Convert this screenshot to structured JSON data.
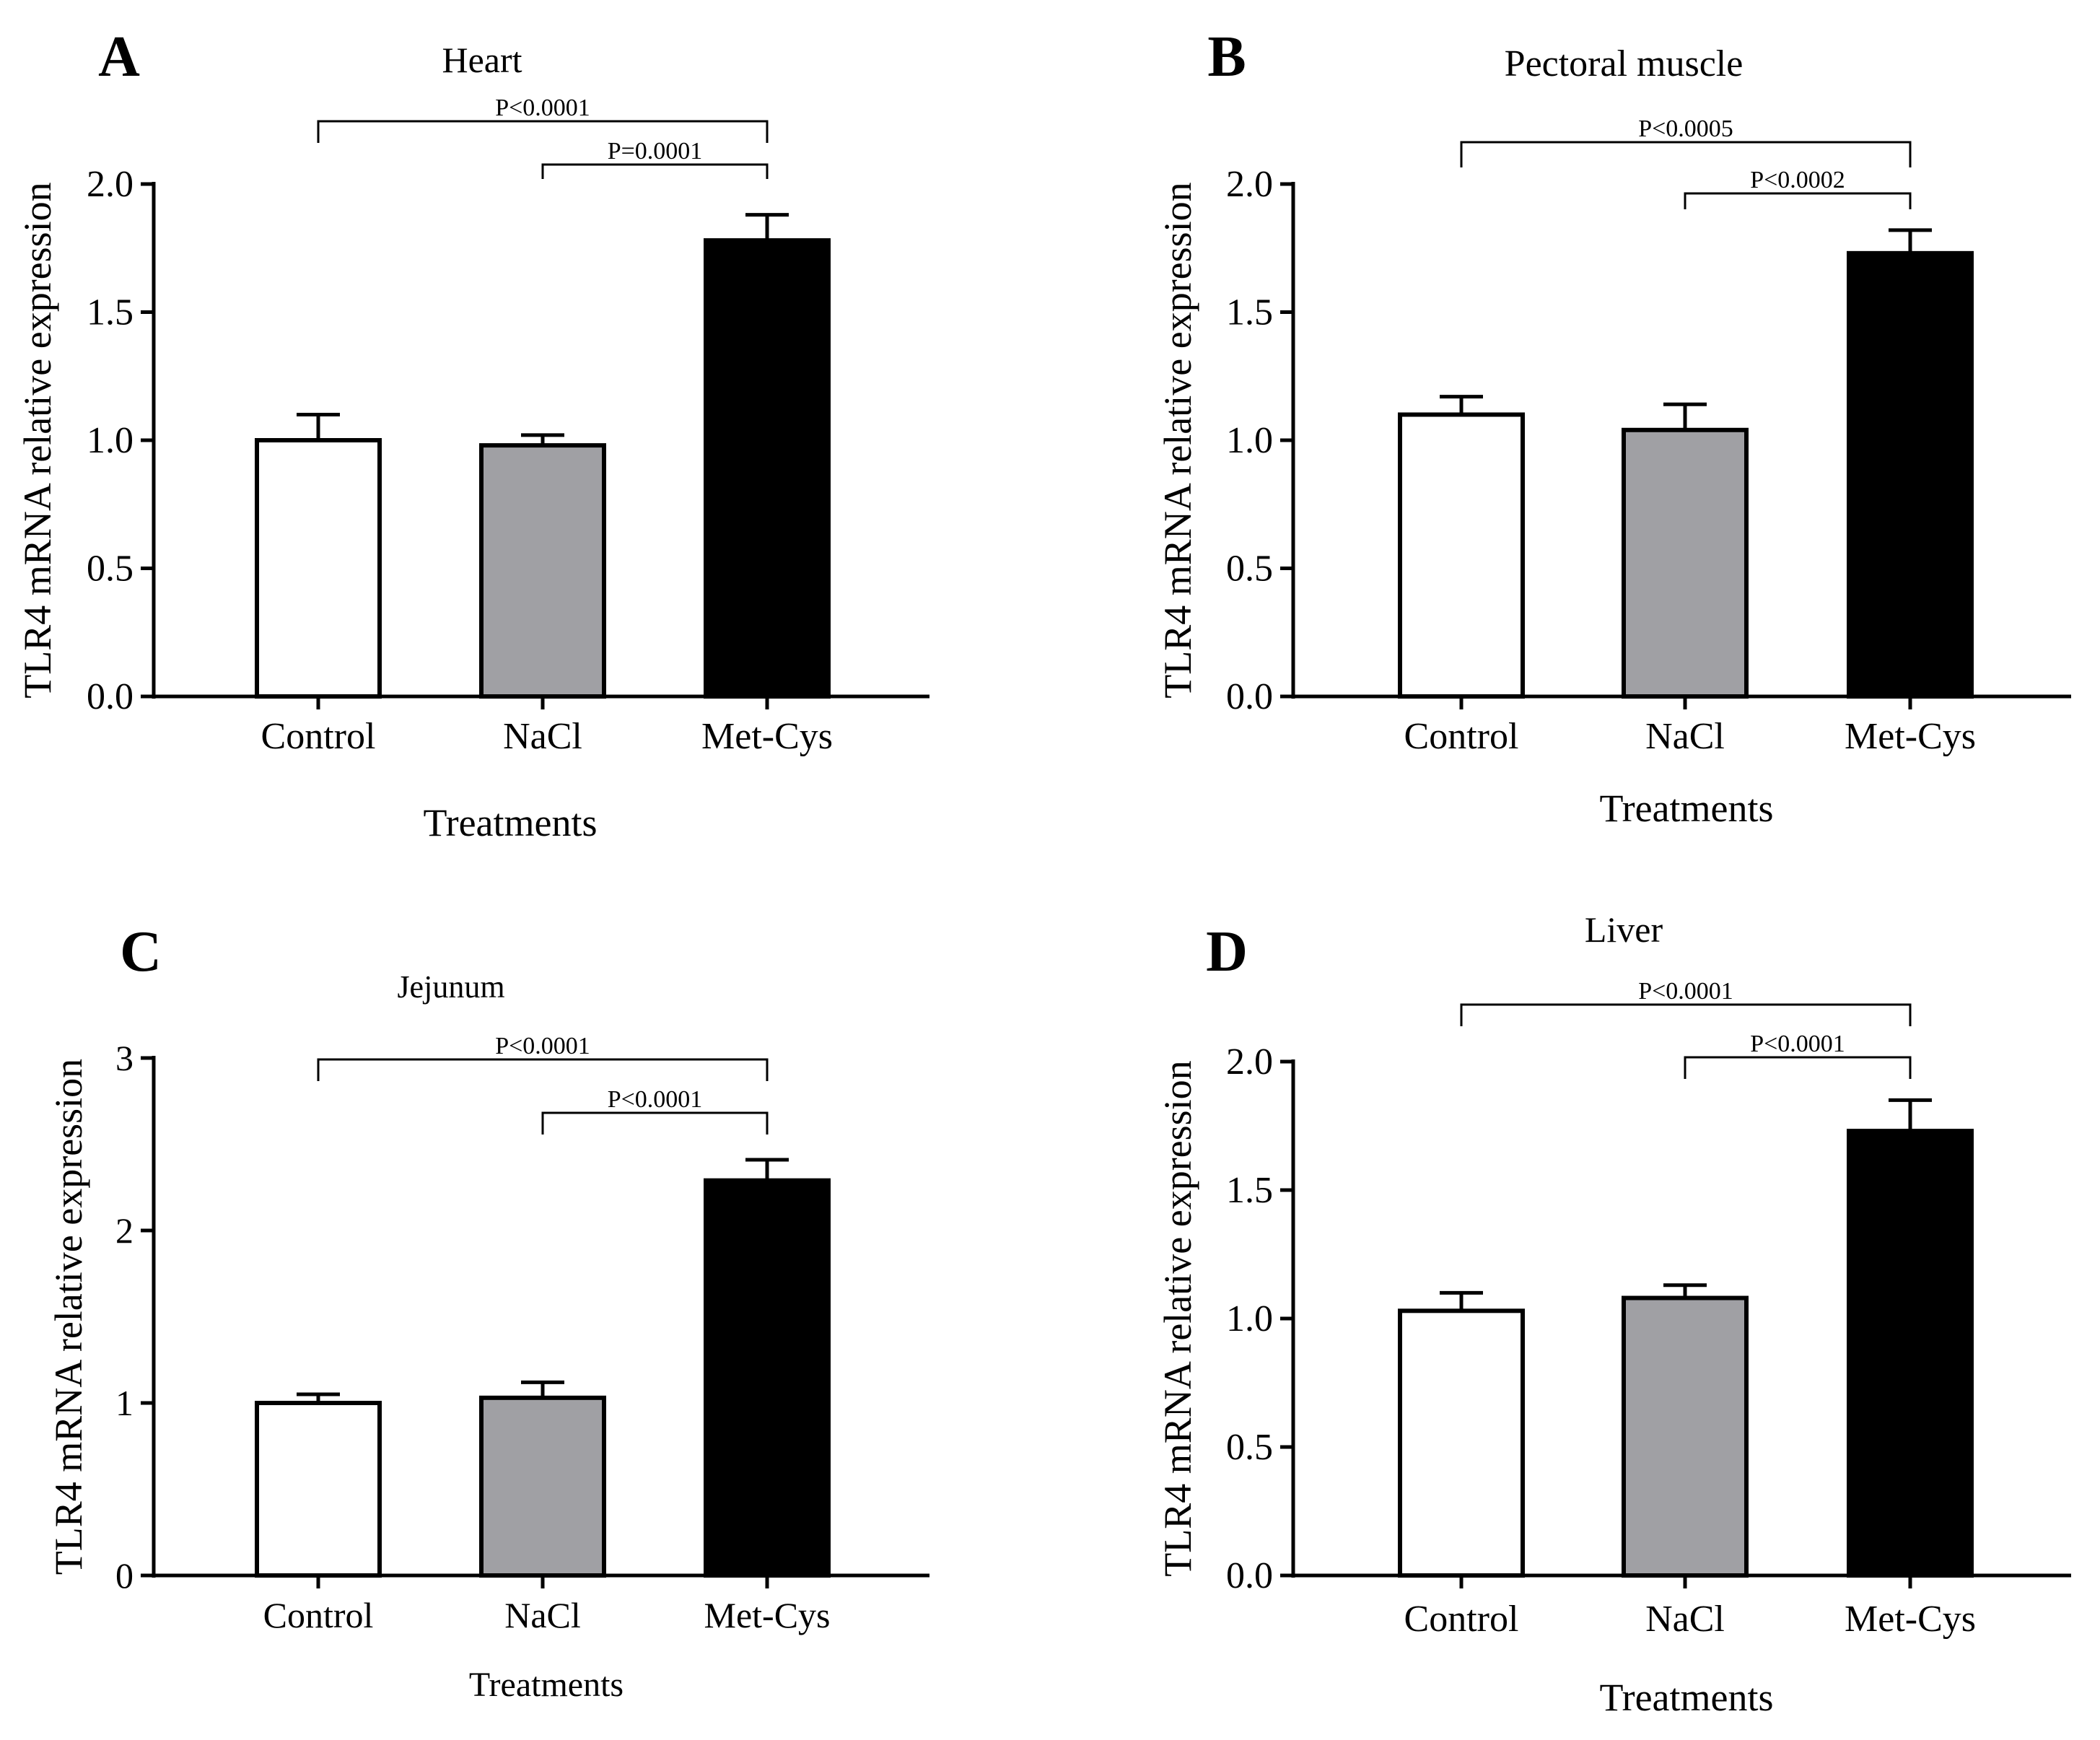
{
  "colors": {
    "axis": "#000000",
    "background": "#ffffff",
    "bar_control": "#ffffff",
    "bar_nacl": "#a0a0a4",
    "bar_metcys": "#000000"
  },
  "chart_data": [
    {
      "type": "bar",
      "panel": "A",
      "title": "Heart",
      "xlabel": "Treatments",
      "ylabel": "TLR4 mRNA relative expression",
      "categories": [
        "Control",
        "NaCl",
        "Met-Cys"
      ],
      "values": [
        1.0,
        0.98,
        1.78
      ],
      "errors": [
        0.1,
        0.04,
        0.1
      ],
      "ylim": [
        0,
        2.0
      ],
      "yticks": [
        0,
        0.5,
        1.0,
        1.5,
        2.0
      ],
      "ytick_labels": [
        "0.0",
        "0.5",
        "1.0",
        "1.5",
        "2.0"
      ],
      "grid": false,
      "comparisons": [
        {
          "from": 0,
          "to": 2,
          "label": "P<0.0001"
        },
        {
          "from": 1,
          "to": 2,
          "label": "P=0.0001"
        }
      ]
    },
    {
      "type": "bar",
      "panel": "B",
      "title": "Pectoral muscle",
      "xlabel": "Treatments",
      "ylabel": "TLR4 mRNA relative expression",
      "categories": [
        "Control",
        "NaCl",
        "Met-Cys"
      ],
      "values": [
        1.1,
        1.04,
        1.73
      ],
      "errors": [
        0.07,
        0.1,
        0.09
      ],
      "ylim": [
        0,
        2.0
      ],
      "yticks": [
        0,
        0.5,
        1.0,
        1.5,
        2.0
      ],
      "ytick_labels": [
        "0.0",
        "0.5",
        "1.0",
        "1.5",
        "2.0"
      ],
      "grid": false,
      "comparisons": [
        {
          "from": 0,
          "to": 2,
          "label": "P<0.0005"
        },
        {
          "from": 1,
          "to": 2,
          "label": "P<0.0002"
        }
      ]
    },
    {
      "type": "bar",
      "panel": "C",
      "title": "Jejunum",
      "xlabel": "Treatments",
      "ylabel": "TLR4 mRNA relative expression",
      "categories": [
        "Control",
        "NaCl",
        "Met-Cys"
      ],
      "values": [
        1.0,
        1.03,
        2.29
      ],
      "errors": [
        0.05,
        0.09,
        0.12
      ],
      "ylim": [
        0,
        3
      ],
      "yticks": [
        0,
        1,
        2,
        3
      ],
      "ytick_labels": [
        "0",
        "1",
        "2",
        "3"
      ],
      "grid": false,
      "comparisons": [
        {
          "from": 0,
          "to": 2,
          "label": "P<0.0001"
        },
        {
          "from": 1,
          "to": 2,
          "label": "P<0.0001"
        }
      ]
    },
    {
      "type": "bar",
      "panel": "D",
      "title": "Liver",
      "xlabel": "Treatments",
      "ylabel": "TLR4 mRNA relative expression",
      "categories": [
        "Control",
        "NaCl",
        "Met-Cys"
      ],
      "values": [
        1.03,
        1.08,
        1.73
      ],
      "errors": [
        0.07,
        0.05,
        0.12
      ],
      "ylim": [
        0,
        2.0
      ],
      "yticks": [
        0,
        0.5,
        1.0,
        1.5,
        2.0
      ],
      "ytick_labels": [
        "0.0",
        "0.5",
        "1.0",
        "1.5",
        "2.0"
      ],
      "grid": false,
      "comparisons": [
        {
          "from": 0,
          "to": 2,
          "label": "P<0.0001"
        },
        {
          "from": 1,
          "to": 2,
          "label": "P<0.0001"
        }
      ]
    }
  ]
}
